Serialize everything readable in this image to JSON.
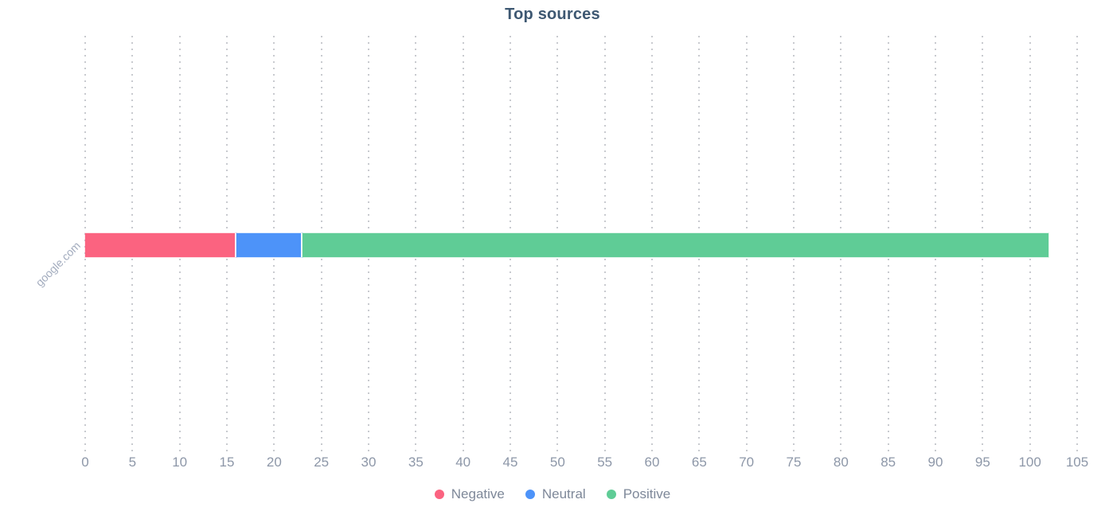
{
  "page": {
    "background": "#ffffff"
  },
  "colors": {
    "title": "#3E5872",
    "tick_label": "#8D97A8",
    "category_label": "#A3ACBE",
    "legend_label": "#7E8899",
    "grid_dot": "#C8CACF"
  },
  "chart_data": {
    "type": "bar",
    "orientation": "horizontal",
    "stacked": true,
    "title": "Top sources",
    "categories": [
      "google.com"
    ],
    "series": [
      {
        "name": "Negative",
        "values": [
          16
        ],
        "color": "#FB6380"
      },
      {
        "name": "Neutral",
        "values": [
          7
        ],
        "color": "#4D93F9"
      },
      {
        "name": "Positive",
        "values": [
          79
        ],
        "color": "#5FCC96"
      }
    ],
    "totals": [
      102
    ],
    "xlim": [
      0,
      105
    ],
    "x_ticks": [
      0,
      5,
      10,
      15,
      20,
      25,
      30,
      35,
      40,
      45,
      50,
      55,
      60,
      65,
      70,
      75,
      80,
      85,
      90,
      95,
      100,
      105
    ],
    "xlabel": "",
    "ylabel": "",
    "grid": "vertical-dotted",
    "legend_position": "bottom"
  }
}
